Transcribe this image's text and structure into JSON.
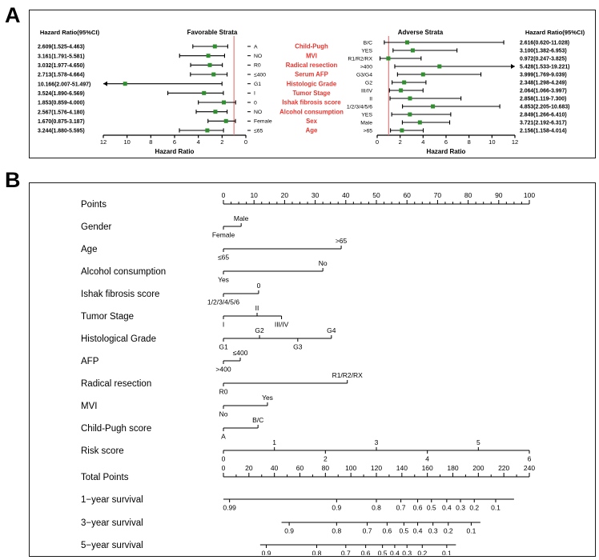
{
  "colors": {
    "marker_green": "#2f8f2f",
    "ref_line_red": "#e87070",
    "category_red": "#e5352f",
    "axis_black": "#000000"
  },
  "chart_data": [
    {
      "type": "forest",
      "panel": "A",
      "categories": [
        "Child-Pugh",
        "MVI",
        "Radical resection",
        "Serum AFP",
        "Histologic Grade",
        "Tumor Stage",
        "Ishak fibrosis score",
        "Alcohol consumption",
        "Sex",
        "Age"
      ],
      "favorable": {
        "value_header": "Hazard Ratio(95%CI)",
        "title": "Favorable Strata",
        "axis_label": "Hazard Ratio",
        "axis_ticks": [
          12,
          10,
          8,
          6,
          4,
          2,
          0
        ],
        "axis_max": 12,
        "reversed": true,
        "ref_value": 1,
        "rows": [
          {
            "value_text": "2.609(1.525-4.463)",
            "label": "A",
            "hr": 2.609,
            "lo": 1.525,
            "hi": 4.463
          },
          {
            "value_text": "3.161(1.791-5.581)",
            "label": "NO",
            "hr": 3.161,
            "lo": 1.791,
            "hi": 5.581
          },
          {
            "value_text": "3.032(1.977-4.650)",
            "label": "R0",
            "hr": 3.032,
            "lo": 1.977,
            "hi": 4.65
          },
          {
            "value_text": "2.713(1.578-4.664)",
            "label": "≤400",
            "hr": 2.713,
            "lo": 1.578,
            "hi": 4.664
          },
          {
            "value_text": "10.166(2.007-51.497)",
            "label": "G1",
            "hr": 10.166,
            "lo": 2.007,
            "hi": 51.497
          },
          {
            "value_text": "3.524(1.890-6.569)",
            "label": "I",
            "hr": 3.524,
            "lo": 1.89,
            "hi": 6.569
          },
          {
            "value_text": "1.853(0.859-4.000)",
            "label": "0",
            "hr": 1.853,
            "lo": 0.859,
            "hi": 4.0
          },
          {
            "value_text": "2.567(1.576-4.180)",
            "label": "NO",
            "hr": 2.567,
            "lo": 1.576,
            "hi": 4.18
          },
          {
            "value_text": "1.670(0.875-3.187)",
            "label": "Female",
            "hr": 1.67,
            "lo": 0.875,
            "hi": 3.187
          },
          {
            "value_text": "3.244(1.880-5.595)",
            "label": "≤65",
            "hr": 3.244,
            "lo": 1.88,
            "hi": 5.595
          }
        ]
      },
      "adverse": {
        "value_header": "Hazard Ratio(95%CI)",
        "title": "Adverse Strata",
        "axis_label": "Hazard Ratio",
        "axis_ticks": [
          0,
          2,
          4,
          6,
          8,
          10,
          12
        ],
        "axis_max": 12,
        "reversed": false,
        "ref_value": 1,
        "rows": [
          {
            "label": "B/C",
            "value_text": "2.616(0.620-11.028)",
            "hr": 2.616,
            "lo": 0.62,
            "hi": 11.028
          },
          {
            "label": "YES",
            "value_text": "3.100(1.382-6.953)",
            "hr": 3.1,
            "lo": 1.382,
            "hi": 6.953
          },
          {
            "label": "R1/R2/RX",
            "value_text": "0.972(0.247-3.825)",
            "hr": 0.972,
            "lo": 0.247,
            "hi": 3.825
          },
          {
            "label": ">400",
            "value_text": "5.428(1.533-19.221)",
            "hr": 5.428,
            "lo": 1.533,
            "hi": 19.221
          },
          {
            "label": "G3/G4",
            "value_text": "3.999(1.769-9.039)",
            "hr": 3.999,
            "lo": 1.769,
            "hi": 9.039
          },
          {
            "label": "G2",
            "value_text": "2.348(1.298-4.249)",
            "hr": 2.348,
            "lo": 1.298,
            "hi": 4.249
          },
          {
            "label": "III/IV",
            "value_text": "2.064(1.066-3.997)",
            "hr": 2.064,
            "lo": 1.066,
            "hi": 3.997
          },
          {
            "label": "II",
            "value_text": "2.858(1.119-7.300)",
            "hr": 2.858,
            "lo": 1.119,
            "hi": 7.3
          },
          {
            "label": "1/2/3/4/5/6",
            "value_text": "4.853(2.205-10.683)",
            "hr": 4.853,
            "lo": 2.205,
            "hi": 10.683
          },
          {
            "label": "YES",
            "value_text": "2.849(1.266-6.410)",
            "hr": 2.849,
            "lo": 1.266,
            "hi": 6.41
          },
          {
            "label": "Male",
            "value_text": "3.721(2.192-6.317)",
            "hr": 3.721,
            "lo": 2.192,
            "hi": 6.317
          },
          {
            "label": ">65",
            "value_text": "2.156(1.158-4.014)",
            "hr": 2.156,
            "lo": 1.158,
            "hi": 4.014
          }
        ]
      }
    },
    {
      "type": "nomogram",
      "panel": "B",
      "rows": [
        {
          "name": "Points",
          "kind": "scale",
          "min": 0,
          "max": 100,
          "tick_labels": [
            "0",
            "10",
            "20",
            "30",
            "40",
            "50",
            "60",
            "70",
            "80",
            "90",
            "100"
          ],
          "minor_div": 4
        },
        {
          "name": "Gender",
          "kind": "cat",
          "line": [
            0,
            5.8
          ],
          "ticks": [
            {
              "t": "Female",
              "p": 0,
              "s": "below"
            },
            {
              "t": "Male",
              "p": 5.8,
              "s": "above"
            }
          ]
        },
        {
          "name": "Age",
          "kind": "cat",
          "line": [
            0,
            38.5
          ],
          "ticks": [
            {
              "t": "≤65",
              "p": 0,
              "s": "below"
            },
            {
              "t": ">65",
              "p": 38.5,
              "s": "above"
            }
          ]
        },
        {
          "name": "Alcohol consumption",
          "kind": "cat",
          "line": [
            0,
            32.5
          ],
          "ticks": [
            {
              "t": "Yes",
              "p": 0,
              "s": "below"
            },
            {
              "t": "No",
              "p": 32.5,
              "s": "above"
            }
          ]
        },
        {
          "name": "Ishak fibrosis score",
          "kind": "cat",
          "line": [
            0,
            11.5
          ],
          "ticks": [
            {
              "t": "1/2/3/4/5/6",
              "p": 0,
              "s": "below"
            },
            {
              "t": "0",
              "p": 11.5,
              "s": "above"
            }
          ]
        },
        {
          "name": "Tumor Stage",
          "kind": "cat",
          "line": [
            0,
            19
          ],
          "ticks": [
            {
              "t": "I",
              "p": 0,
              "s": "below"
            },
            {
              "t": "II",
              "p": 11,
              "s": "above"
            },
            {
              "t": "III/IV",
              "p": 19,
              "s": "below"
            }
          ]
        },
        {
          "name": "Histological Grade",
          "kind": "cat",
          "line": [
            0,
            35.3
          ],
          "ticks": [
            {
              "t": "G1",
              "p": 0,
              "s": "below"
            },
            {
              "t": "G2",
              "p": 11.8,
              "s": "above"
            },
            {
              "t": "G3",
              "p": 24.3,
              "s": "below"
            },
            {
              "t": "G4",
              "p": 35.3,
              "s": "above"
            }
          ]
        },
        {
          "name": "AFP",
          "kind": "cat",
          "line": [
            0,
            5.5
          ],
          "ticks": [
            {
              "t": ">400",
              "p": 0,
              "s": "below"
            },
            {
              "t": "≤400",
              "p": 5.5,
              "s": "above"
            }
          ]
        },
        {
          "name": "Radical resection",
          "kind": "cat",
          "line": [
            0,
            40.5
          ],
          "ticks": [
            {
              "t": "R0",
              "p": 0,
              "s": "below"
            },
            {
              "t": "R1/R2/RX",
              "p": 40.5,
              "s": "above"
            }
          ]
        },
        {
          "name": "MVI",
          "kind": "cat",
          "line": [
            0,
            14.4
          ],
          "ticks": [
            {
              "t": "No",
              "p": 0,
              "s": "below"
            },
            {
              "t": "Yes",
              "p": 14.4,
              "s": "above"
            }
          ]
        },
        {
          "name": "Child-Pugh score",
          "kind": "cat",
          "line": [
            0,
            11.3
          ],
          "ticks": [
            {
              "t": "A",
              "p": 0,
              "s": "below"
            },
            {
              "t": "B/C",
              "p": 11.3,
              "s": "above"
            }
          ]
        },
        {
          "name": "Risk score",
          "kind": "cat",
          "line": [
            0,
            100
          ],
          "ticks": [
            {
              "t": "0",
              "p": 0,
              "s": "below"
            },
            {
              "t": "1",
              "p": 16.67,
              "s": "above"
            },
            {
              "t": "2",
              "p": 33.33,
              "s": "below"
            },
            {
              "t": "3",
              "p": 50,
              "s": "above"
            },
            {
              "t": "4",
              "p": 66.67,
              "s": "below"
            },
            {
              "t": "5",
              "p": 83.33,
              "s": "above"
            },
            {
              "t": "6",
              "p": 100,
              "s": "below"
            }
          ]
        },
        {
          "name": "Total Points",
          "kind": "scale",
          "min": 0,
          "max": 240,
          "tick_labels": [
            "0",
            "20",
            "40",
            "60",
            "80",
            "100",
            "120",
            "140",
            "160",
            "180",
            "200",
            "220",
            "240"
          ],
          "minor_div": 2
        },
        {
          "name": "1−year survival",
          "kind": "cat",
          "line": [
            0,
            95
          ],
          "ticks": [
            {
              "t": "0.99",
              "p": 2,
              "s": "below"
            },
            {
              "t": "0.9",
              "p": 37,
              "s": "below"
            },
            {
              "t": "0.8",
              "p": 50,
              "s": "below"
            },
            {
              "t": "0.7",
              "p": 58,
              "s": "below"
            },
            {
              "t": "0.6",
              "p": 63.5,
              "s": "below"
            },
            {
              "t": "0.5",
              "p": 68,
              "s": "below"
            },
            {
              "t": "0.4",
              "p": 73,
              "s": "below"
            },
            {
              "t": "0.3",
              "p": 77.5,
              "s": "below"
            },
            {
              "t": "0.2",
              "p": 82,
              "s": "below"
            },
            {
              "t": "0.1",
              "p": 89,
              "s": "below"
            }
          ]
        },
        {
          "name": "3−year survival",
          "kind": "cat",
          "line": [
            19,
            84
          ],
          "ticks": [
            {
              "t": "0.9",
              "p": 21.5,
              "s": "below"
            },
            {
              "t": "0.8",
              "p": 37,
              "s": "below"
            },
            {
              "t": "0.7",
              "p": 47,
              "s": "below"
            },
            {
              "t": "0.6",
              "p": 53.5,
              "s": "below"
            },
            {
              "t": "0.5",
              "p": 59,
              "s": "below"
            },
            {
              "t": "0.4",
              "p": 63.5,
              "s": "below"
            },
            {
              "t": "0.3",
              "p": 68.5,
              "s": "below"
            },
            {
              "t": "0.2",
              "p": 73.5,
              "s": "below"
            },
            {
              "t": "0.1",
              "p": 81,
              "s": "below"
            }
          ]
        },
        {
          "name": "5−year survival",
          "kind": "cat",
          "line": [
            12,
            76
          ],
          "ticks": [
            {
              "t": "0.9",
              "p": 14,
              "s": "below"
            },
            {
              "t": "0.8",
              "p": 30.5,
              "s": "below"
            },
            {
              "t": "0.7",
              "p": 40,
              "s": "below"
            },
            {
              "t": "0.6",
              "p": 46.5,
              "s": "below"
            },
            {
              "t": "0.5",
              "p": 52,
              "s": "below"
            },
            {
              "t": "0.4",
              "p": 56,
              "s": "below"
            },
            {
              "t": "0.3",
              "p": 60,
              "s": "below"
            },
            {
              "t": "0.2",
              "p": 65,
              "s": "below"
            },
            {
              "t": "0.1",
              "p": 73,
              "s": "below"
            }
          ]
        }
      ]
    }
  ]
}
